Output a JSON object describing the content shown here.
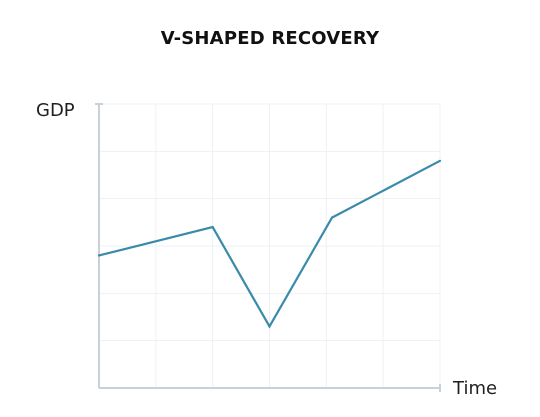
{
  "chart_data": {
    "type": "line",
    "title": "V-SHAPED RECOVERY",
    "ylabel": "GDP",
    "xlabel": "Time",
    "x": [
      0,
      2,
      3,
      4.1,
      6
    ],
    "series": [
      {
        "values": [
          2.8,
          3.4,
          1.3,
          3.6,
          4.8
        ]
      }
    ],
    "xlim": [
      0,
      6
    ],
    "ylim": [
      0,
      6
    ],
    "grid": true,
    "colors": {
      "line": "#3a8aaa",
      "grid": "#eef1f3",
      "axis": "#c9d1d6",
      "text": "#1f1f1f"
    }
  }
}
